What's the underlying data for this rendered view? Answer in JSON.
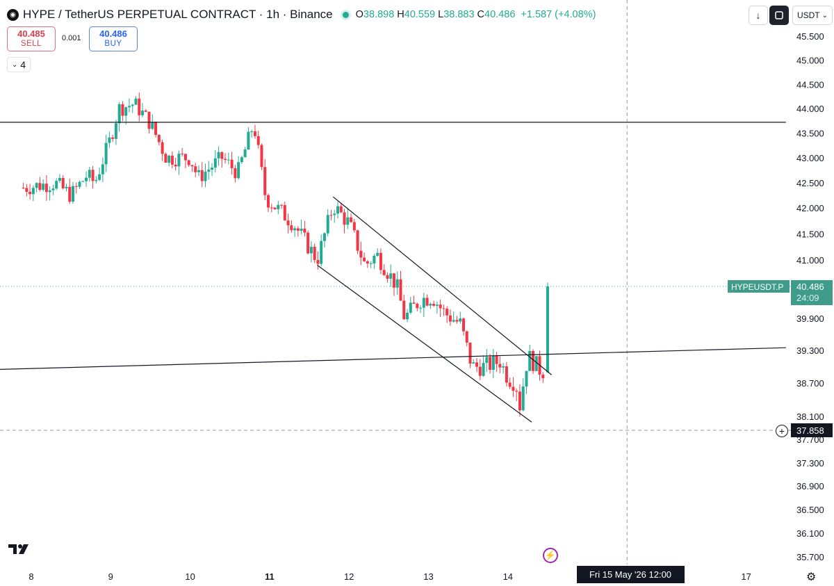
{
  "header": {
    "title": "HYPE / TetherUS PERPETUAL CONTRACT · 1h · Binance",
    "open_label": "O",
    "open": "38.898",
    "high_label": "H",
    "high": "40.559",
    "low_label": "L",
    "low": "38.883",
    "close_label": "C",
    "close": "40.486",
    "change": "+1.587 (+4.08%)"
  },
  "trade": {
    "sell_price": "40.485",
    "sell_label": "SELL",
    "spread": "0.001",
    "buy_price": "40.486",
    "buy_label": "BUY"
  },
  "indicators_count": "4",
  "currency": "USDT",
  "colors": {
    "up": "#22ab94",
    "down": "#f23645",
    "price_tag": "#3f9b8a",
    "crosshair_tag": "#131722"
  },
  "icons": {
    "logo": "hype-logo-icon",
    "down": "arrow-down-icon",
    "fullscreen": "fullscreen-icon",
    "chevron": "chevron-down-icon",
    "brand": "tradingview-logo-icon",
    "bolt": "lightning-icon",
    "settings": "gear-icon",
    "add": "plus-circle-icon"
  },
  "price_label": {
    "symbol": "HYPEUSDT.P",
    "price": "40.486",
    "countdown": "24:09"
  },
  "crosshair": {
    "price": "37.858",
    "time_label": "Fri 15 May '26   12:00"
  },
  "chart_data": {
    "type": "candlestick",
    "ylim": [
      35.5,
      45.8
    ],
    "yticks": [
      "45.500",
      "45.000",
      "44.500",
      "44.000",
      "43.500",
      "43.000",
      "42.500",
      "42.000",
      "41.500",
      "41.000",
      "39.900",
      "39.300",
      "38.700",
      "38.100",
      "37.700",
      "37.300",
      "36.900",
      "36.500",
      "36.100",
      "35.700"
    ],
    "xticks": [
      {
        "label": "8",
        "day": 8,
        "bold": false
      },
      {
        "label": "9",
        "day": 9,
        "bold": false
      },
      {
        "label": "10",
        "day": 10,
        "bold": false
      },
      {
        "label": "11",
        "day": 11,
        "bold": true
      },
      {
        "label": "12",
        "day": 12,
        "bold": false
      },
      {
        "label": "13",
        "day": 13,
        "bold": false
      },
      {
        "label": "14",
        "day": 14,
        "bold": false
      },
      {
        "label": "17",
        "day": 17,
        "bold": false
      }
    ],
    "key_closes": [
      {
        "day": 7.9,
        "close": 42.4
      },
      {
        "day": 8.3,
        "close": 42.5
      },
      {
        "day": 8.5,
        "close": 42.25
      },
      {
        "day": 8.7,
        "close": 42.65
      },
      {
        "day": 8.8,
        "close": 42.5
      },
      {
        "day": 9.0,
        "close": 43.4
      },
      {
        "day": 9.1,
        "close": 44.0
      },
      {
        "day": 9.3,
        "close": 44.1
      },
      {
        "day": 9.5,
        "close": 43.7
      },
      {
        "day": 9.7,
        "close": 43.0
      },
      {
        "day": 10.0,
        "close": 43.0
      },
      {
        "day": 10.1,
        "close": 42.6
      },
      {
        "day": 10.4,
        "close": 43.0
      },
      {
        "day": 10.6,
        "close": 42.7
      },
      {
        "day": 10.8,
        "close": 43.7
      },
      {
        "day": 10.95,
        "close": 42.2
      },
      {
        "day": 11.3,
        "close": 41.7
      },
      {
        "day": 11.6,
        "close": 41.0
      },
      {
        "day": 11.8,
        "close": 42.05
      },
      {
        "day": 12.0,
        "close": 41.7
      },
      {
        "day": 12.2,
        "close": 40.9
      },
      {
        "day": 12.35,
        "close": 41.1
      },
      {
        "day": 12.6,
        "close": 40.5
      },
      {
        "day": 12.7,
        "close": 39.9
      },
      {
        "day": 12.9,
        "close": 40.25
      },
      {
        "day": 13.05,
        "close": 40.3
      },
      {
        "day": 13.2,
        "close": 40.0
      },
      {
        "day": 13.4,
        "close": 39.8
      },
      {
        "day": 13.55,
        "close": 39.0
      },
      {
        "day": 13.7,
        "close": 39.0
      },
      {
        "day": 13.9,
        "close": 39.1
      },
      {
        "day": 14.0,
        "close": 38.8
      },
      {
        "day": 14.1,
        "close": 38.7
      },
      {
        "day": 14.15,
        "close": 38.3
      },
      {
        "day": 14.25,
        "close": 39.2
      },
      {
        "day": 14.4,
        "close": 38.95
      },
      {
        "day": 14.47,
        "close": 38.9
      },
      {
        "day": 14.5,
        "close": 40.486
      }
    ],
    "last_candle": {
      "open": 38.898,
      "high": 40.559,
      "low": 38.883,
      "close": 40.486
    },
    "lines": [
      {
        "name": "resistance",
        "x1": 7.6,
        "y1": 43.72,
        "x2": 17.5,
        "y2": 43.72
      },
      {
        "name": "support",
        "x1": 7.6,
        "y1": 38.95,
        "x2": 17.5,
        "y2": 39.35
      },
      {
        "name": "channel-upper",
        "x1": 11.8,
        "y1": 42.22,
        "x2": 14.55,
        "y2": 38.85
      },
      {
        "name": "channel-lower",
        "x1": 11.6,
        "y1": 40.9,
        "x2": 14.3,
        "y2": 38.0
      }
    ]
  }
}
